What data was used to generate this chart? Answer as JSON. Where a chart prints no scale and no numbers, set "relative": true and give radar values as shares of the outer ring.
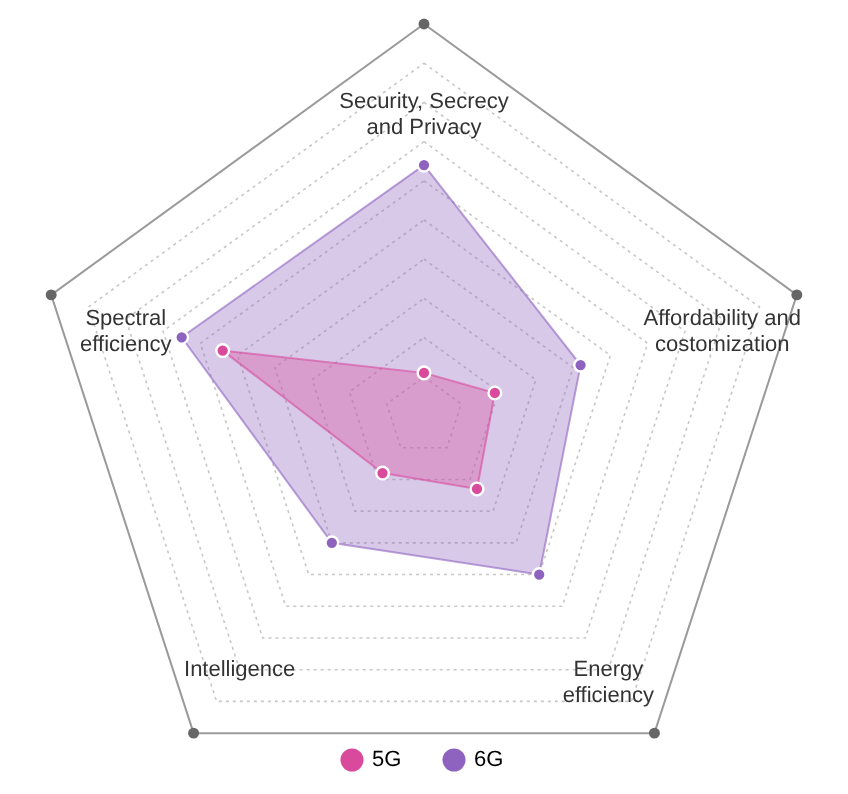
{
  "chart_data": {
    "type": "radar",
    "relative": true,
    "categories": [
      "Security, Secrecy\nand Privacy",
      "Affordability and\ncostomization",
      "Energy\nefficiency",
      "Intelligence",
      "Spectral\nefficiency"
    ],
    "series": [
      {
        "name": "5G",
        "color": "#d94a9c",
        "values": [
          0.11,
          0.19,
          0.23,
          0.18,
          0.54
        ]
      },
      {
        "name": "6G",
        "color": "#8e63bf",
        "values": [
          0.64,
          0.42,
          0.5,
          0.4,
          0.65
        ]
      }
    ],
    "grid": true,
    "legend": "bottom",
    "marker": "circle"
  }
}
